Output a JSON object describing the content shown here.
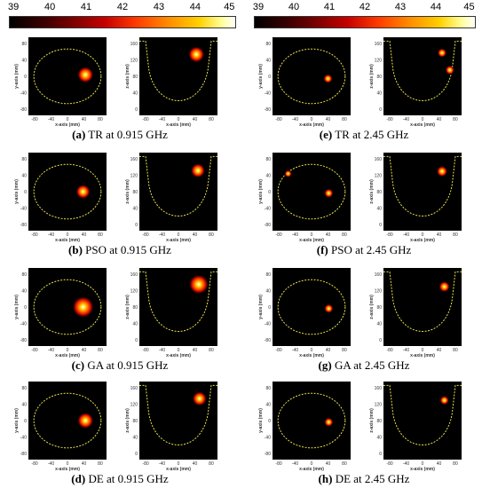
{
  "colorbar": {
    "ticks": [
      "39",
      "40",
      "41",
      "42",
      "43",
      "44",
      "45"
    ]
  },
  "panels": [
    {
      "id": "a",
      "letter": "(a)",
      "text": "TR at 0.915 GHz"
    },
    {
      "id": "e",
      "letter": "(e)",
      "text": "TR at 2.45 GHz"
    },
    {
      "id": "b",
      "letter": "(b)",
      "text": "PSO at 0.915 GHz"
    },
    {
      "id": "f",
      "letter": "(f)",
      "text": "PSO at 2.45 GHz"
    },
    {
      "id": "c",
      "letter": "(c)",
      "text": "GA at 0.915 GHz"
    },
    {
      "id": "g",
      "letter": "(g)",
      "text": "GA at 2.45 GHz"
    },
    {
      "id": "d",
      "letter": "(d)",
      "text": "DE at 0.915 GHz"
    },
    {
      "id": "h",
      "letter": "(h)",
      "text": "DE at 2.45 GHz"
    }
  ],
  "axes": {
    "xy_xlabel": "x-axis (mm)",
    "xy_ylabel": "y-axis (mm)",
    "xz_xlabel": "x-axis (mm)",
    "xz_ylabel": "z-axis (mm)",
    "xy_xticks": [
      "-80",
      "-40",
      "0",
      "40",
      "80"
    ],
    "xy_yticks": [
      "80",
      "40",
      "0",
      "-40",
      "-80"
    ],
    "xz_xticks": [
      "-80",
      "-40",
      "0",
      "40",
      "80"
    ],
    "xz_yticks": [
      "160",
      "120",
      "80",
      "40",
      "0"
    ]
  },
  "colors": {
    "boundary": "#e8e04a",
    "background": "#000000"
  }
}
